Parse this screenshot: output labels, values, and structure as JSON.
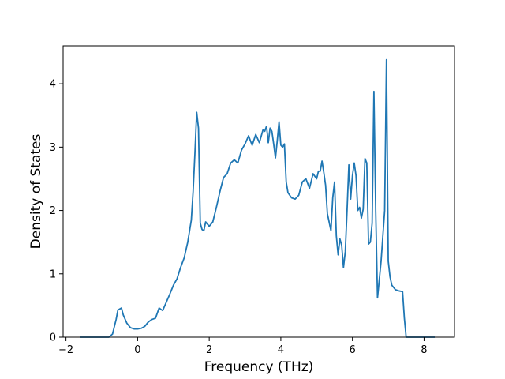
{
  "chart_data": {
    "type": "line",
    "title": "",
    "xlabel": "Frequency (THz)",
    "ylabel": "Density of States",
    "xlim": [
      -2.08,
      8.85
    ],
    "ylim": [
      0,
      4.6
    ],
    "xticks": [
      -2,
      0,
      2,
      4,
      6,
      8
    ],
    "yticks": [
      0,
      1,
      2,
      3,
      4
    ],
    "grid": false,
    "line_color": "#1f77b4",
    "series": [
      {
        "x": [
          -1.6,
          -0.8,
          -0.7,
          -0.6,
          -0.55,
          -0.45,
          -0.4,
          -0.3,
          -0.2,
          -0.1,
          0.0,
          0.1,
          0.2,
          0.3,
          0.4,
          0.5,
          0.6,
          0.7,
          0.8,
          0.9,
          1.0,
          1.1,
          1.2,
          1.3,
          1.4,
          1.5,
          1.55,
          1.6,
          1.65,
          1.7,
          1.75,
          1.8,
          1.85,
          1.9,
          2.0,
          2.1,
          2.2,
          2.3,
          2.4,
          2.5,
          2.6,
          2.7,
          2.8,
          2.9,
          3.0,
          3.1,
          3.15,
          3.2,
          3.3,
          3.4,
          3.5,
          3.55,
          3.6,
          3.65,
          3.7,
          3.75,
          3.8,
          3.85,
          3.9,
          3.95,
          4.0,
          4.05,
          4.1,
          4.15,
          4.2,
          4.3,
          4.4,
          4.5,
          4.6,
          4.7,
          4.8,
          4.9,
          5.0,
          5.05,
          5.1,
          5.15,
          5.2,
          5.25,
          5.3,
          5.4,
          5.45,
          5.5,
          5.55,
          5.6,
          5.65,
          5.7,
          5.75,
          5.8,
          5.85,
          5.9,
          5.95,
          6.0,
          6.05,
          6.1,
          6.15,
          6.2,
          6.25,
          6.3,
          6.35,
          6.4,
          6.45,
          6.5,
          6.55,
          6.6,
          6.65,
          6.7,
          6.8,
          6.9,
          6.95,
          7.0,
          7.05,
          7.1,
          7.2,
          7.3,
          7.4,
          7.45,
          7.5,
          7.6,
          8.3
        ],
        "y": [
          0.0,
          0.0,
          0.05,
          0.28,
          0.43,
          0.46,
          0.35,
          0.22,
          0.15,
          0.13,
          0.13,
          0.14,
          0.17,
          0.24,
          0.28,
          0.3,
          0.46,
          0.42,
          0.55,
          0.68,
          0.82,
          0.92,
          1.1,
          1.25,
          1.5,
          1.85,
          2.3,
          2.9,
          3.55,
          3.3,
          1.8,
          1.7,
          1.68,
          1.82,
          1.75,
          1.82,
          2.05,
          2.3,
          2.52,
          2.58,
          2.75,
          2.8,
          2.75,
          2.95,
          3.05,
          3.18,
          3.1,
          3.03,
          3.2,
          3.07,
          3.27,
          3.25,
          3.33,
          3.07,
          3.3,
          3.25,
          3.05,
          2.83,
          3.1,
          3.4,
          3.03,
          3.0,
          3.05,
          2.45,
          2.28,
          2.2,
          2.18,
          2.24,
          2.45,
          2.5,
          2.35,
          2.58,
          2.5,
          2.62,
          2.62,
          2.78,
          2.6,
          2.4,
          1.95,
          1.68,
          2.2,
          2.45,
          1.6,
          1.3,
          1.55,
          1.45,
          1.1,
          1.35,
          2.0,
          2.72,
          2.18,
          2.55,
          2.75,
          2.55,
          2.0,
          2.05,
          1.88,
          2.02,
          2.82,
          2.75,
          1.47,
          1.5,
          1.8,
          3.88,
          2.0,
          0.62,
          1.2,
          2.0,
          4.38,
          1.2,
          0.95,
          0.82,
          0.75,
          0.73,
          0.72,
          0.3,
          0.0,
          0.0,
          0.0
        ]
      }
    ]
  }
}
